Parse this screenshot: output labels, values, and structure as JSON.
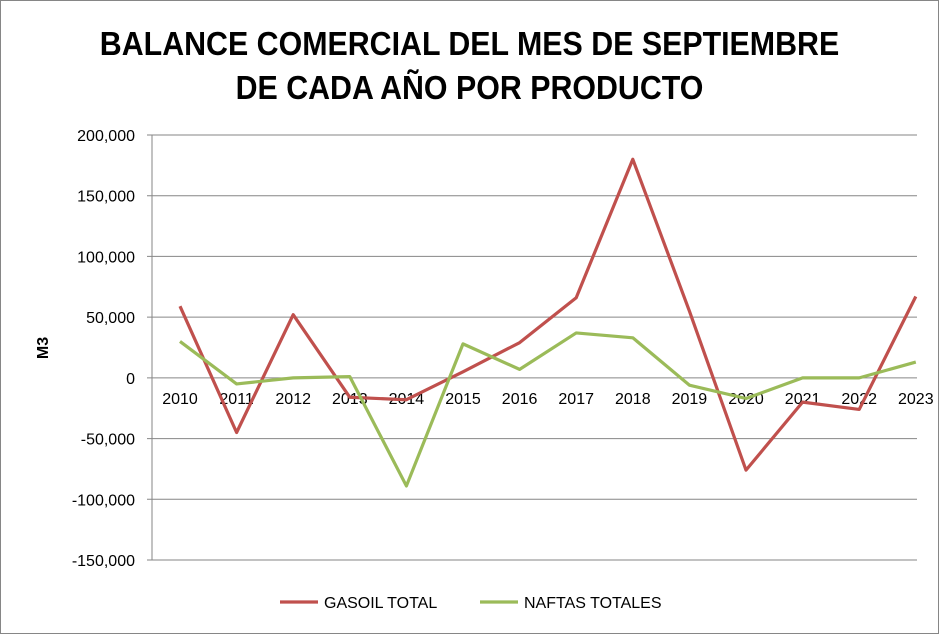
{
  "chart_data": {
    "type": "line",
    "title_line1": "BALANCE COMERCIAL DEL MES DE SEPTIEMBRE",
    "title_line2": "DE CADA AÑO POR PRODUCTO",
    "xlabel": "",
    "ylabel": "M3",
    "ylim": [
      -150000,
      200000
    ],
    "yticks": [
      200000,
      150000,
      100000,
      50000,
      0,
      -50000,
      -100000,
      -150000
    ],
    "ytick_labels": [
      "200,000",
      "150,000",
      "100,000",
      "50,000",
      "0",
      "-50,000",
      "-100,000",
      "-150,000"
    ],
    "grid": true,
    "legend_position": "bottom",
    "categories": [
      "2010",
      "2011",
      "2012",
      "2013",
      "2014",
      "2015",
      "2016",
      "2017",
      "2018",
      "2019",
      "2020",
      "2021",
      "2022",
      "2023"
    ],
    "series": [
      {
        "name": "GASOIL TOTAL",
        "color": "#c0504d",
        "values": [
          59000,
          -45000,
          52000,
          -16000,
          -18000,
          5000,
          29000,
          66000,
          180000,
          55000,
          -76000,
          -20000,
          -26000,
          67000
        ]
      },
      {
        "name": "NAFTAS TOTALES",
        "color": "#9bbb59",
        "values": [
          30000,
          -5000,
          0,
          1000,
          -89000,
          28000,
          7000,
          37000,
          33000,
          -6000,
          -17000,
          0,
          0,
          13000
        ]
      }
    ]
  }
}
